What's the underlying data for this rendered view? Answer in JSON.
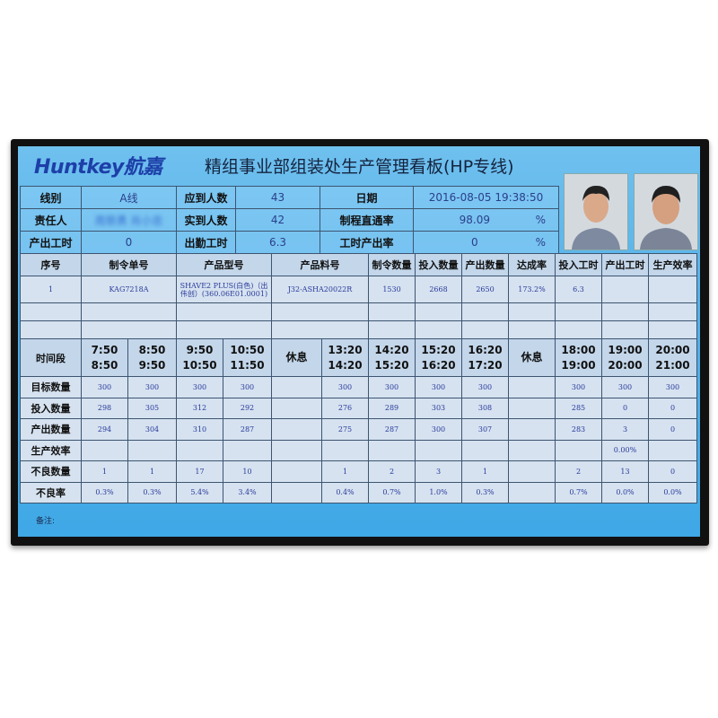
{
  "header": {
    "logo": "Huntkey航嘉",
    "title": "精组事业部组装处生产管理看板(HP专线)"
  },
  "info": {
    "line_label": "线别",
    "line_value": "A线",
    "expected_label": "应到人数",
    "expected_value": "43",
    "date_label": "日期",
    "date_value": "2016-08-05 19:38:50",
    "owner_label": "责任人",
    "owner_value": "周慈勇 肖小忠",
    "actual_label": "实到人数",
    "actual_value": "42",
    "pass_rate_label": "制程直通率",
    "pass_rate_value": "98.09",
    "pass_rate_unit": "%",
    "output_hours_label": "产出工时",
    "output_hours_value": "0",
    "attendance_hours_label": "出勤工时",
    "attendance_hours_value": "6.3",
    "hour_output_rate_label": "工时产出率",
    "hour_output_rate_value": "0",
    "hour_output_rate_unit": "%"
  },
  "orders": {
    "headers": [
      "序号",
      "制令单号",
      "产品型号",
      "产品料号",
      "制令数量",
      "投入数量",
      "产出数量",
      "达成率",
      "投入工时",
      "产出工时",
      "生产效率"
    ],
    "rows": [
      [
        "1",
        "KAG7218A",
        "SHAVE2 PLUS(白色)（出伟创）(360.06E01.0001)",
        "J32-ASHA20022R",
        "1530",
        "2668",
        "2650",
        "173.2%",
        "6.3",
        "",
        ""
      ]
    ]
  },
  "hourly": {
    "period_label": "时间段",
    "periods": [
      [
        "7:50",
        "8:50"
      ],
      [
        "8:50",
        "9:50"
      ],
      [
        "9:50",
        "10:50"
      ],
      [
        "10:50",
        "11:50"
      ],
      [
        "休息"
      ],
      [
        "13:20",
        "14:20"
      ],
      [
        "14:20",
        "15:20"
      ],
      [
        "15:20",
        "16:20"
      ],
      [
        "16:20",
        "17:20"
      ],
      [
        "休息"
      ],
      [
        "18:00",
        "19:00"
      ],
      [
        "19:00",
        "20:00"
      ],
      [
        "20:00",
        "21:00"
      ]
    ],
    "rows": [
      {
        "label": "目标数量",
        "values": [
          "300",
          "300",
          "300",
          "300",
          "",
          "300",
          "300",
          "300",
          "300",
          "",
          "300",
          "300",
          "300"
        ]
      },
      {
        "label": "投入数量",
        "values": [
          "298",
          "305",
          "312",
          "292",
          "",
          "276",
          "289",
          "303",
          "308",
          "",
          "285",
          "0",
          "0"
        ]
      },
      {
        "label": "产出数量",
        "values": [
          "294",
          "304",
          "310",
          "287",
          "",
          "275",
          "287",
          "300",
          "307",
          "",
          "283",
          "3",
          "0"
        ]
      },
      {
        "label": "生产效率",
        "values": [
          "",
          "",
          "",
          "",
          "",
          "",
          "",
          "",
          "",
          "",
          "",
          "0.00%",
          ""
        ]
      },
      {
        "label": "不良数量",
        "values": [
          "1",
          "1",
          "17",
          "10",
          "",
          "1",
          "2",
          "3",
          "1",
          "",
          "2",
          "13",
          "0"
        ]
      },
      {
        "label": "不良率",
        "values": [
          "0.3%",
          "0.3%",
          "5.4%",
          "3.4%",
          "",
          "0.4%",
          "0.7%",
          "1.0%",
          "0.3%",
          "",
          "0.7%",
          "0.0%",
          "0.0%"
        ]
      }
    ]
  },
  "footer": {
    "remark_label": "备注:"
  },
  "colors": {
    "screen_bg": "#55b2ea",
    "logo": "#1d3fa8",
    "cell_bg": "#d6e2f0",
    "value_text": "#2a3a9a"
  }
}
